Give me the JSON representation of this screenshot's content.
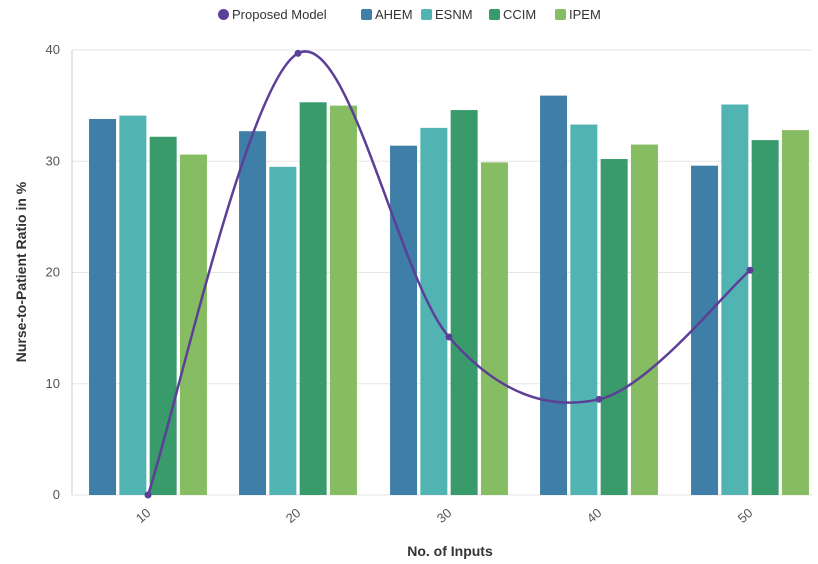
{
  "chart_data": {
    "type": "bar",
    "xlabel": "No. of Inputs",
    "ylabel": "Nurse-to-Patient Ratio in %",
    "categories": [
      "10",
      "20",
      "30",
      "40",
      "50"
    ],
    "ylim": [
      0,
      40
    ],
    "yticks": [
      0,
      10,
      20,
      30,
      40
    ],
    "grid": true,
    "legend_position": "top-center",
    "series": [
      {
        "name": "AHEM",
        "color": "#3f7ea6",
        "values": [
          33.8,
          32.7,
          31.4,
          35.9,
          29.6
        ]
      },
      {
        "name": "ESNM",
        "color": "#52b3b3",
        "values": [
          34.1,
          29.5,
          33.0,
          33.3,
          35.1
        ]
      },
      {
        "name": "CCIM",
        "color": "#399a6b",
        "values": [
          32.2,
          35.3,
          34.6,
          30.2,
          31.9
        ]
      },
      {
        "name": "IPEM",
        "color": "#86bd63",
        "values": [
          30.6,
          35.0,
          29.9,
          31.5,
          32.8
        ]
      }
    ],
    "line_series": {
      "name": "Proposed Model",
      "color": "#5c3f97",
      "values": [
        0,
        39.7,
        14.2,
        8.6,
        20.2
      ]
    }
  }
}
